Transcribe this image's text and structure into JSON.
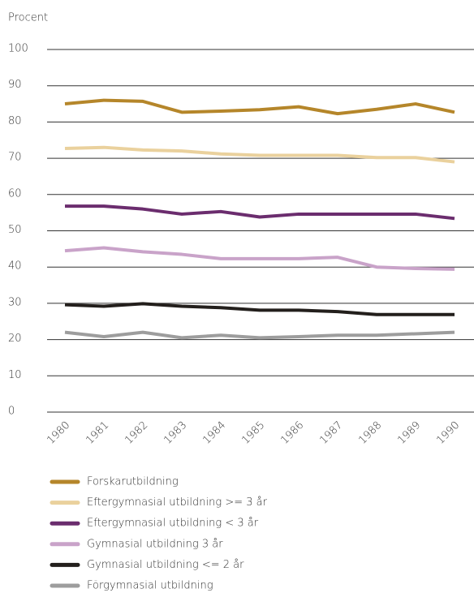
{
  "chart_data": {
    "type": "line",
    "y_label": "Procent",
    "categories": [
      "1980",
      "1981",
      "1982",
      "1983",
      "1984",
      "1985",
      "1986",
      "1987",
      "1988",
      "1989",
      "1990"
    ],
    "ylim": [
      0,
      100
    ],
    "yticks": [
      0,
      10,
      20,
      30,
      40,
      50,
      60,
      70,
      80,
      90,
      100
    ],
    "grid": true,
    "series": [
      {
        "name": "Forskarutbildning",
        "color": "#b5862a",
        "values": [
          85,
          86,
          85.7,
          82.7,
          83,
          83.4,
          84.2,
          82.3,
          83.5,
          85,
          82.7
        ]
      },
      {
        "name": "Eftergymnasial utbildning  >= 3 år",
        "color": "#ead19d",
        "values": [
          72.7,
          73,
          72.3,
          72,
          71.2,
          70.8,
          70.8,
          70.8,
          70.2,
          70.2,
          69
        ]
      },
      {
        "name": "Eftergymnasial utbildning  < 3 år",
        "color": "#6b2d6e",
        "values": [
          56.8,
          56.8,
          56,
          54.6,
          55.3,
          53.8,
          54.6,
          54.6,
          54.6,
          54.6,
          53.4
        ]
      },
      {
        "name": "Gymnasial utbildning 3 år",
        "color": "#c9a3c9",
        "values": [
          44.5,
          45.3,
          44.2,
          43.5,
          42.3,
          42.3,
          42.3,
          42.7,
          40,
          39.6,
          39.4
        ]
      },
      {
        "name": "Gymnasial utbildning <= 2 år",
        "color": "#231f1c",
        "values": [
          29.6,
          29.2,
          29.9,
          29.2,
          28.8,
          28.1,
          28.1,
          27.7,
          26.9,
          26.9,
          26.9
        ]
      },
      {
        "name": "Förgymnasial utbildning",
        "color": "#9d9d9d",
        "values": [
          22,
          20.8,
          22,
          20.5,
          21.2,
          20.5,
          20.8,
          21.2,
          21.2,
          21.6,
          22
        ]
      }
    ]
  }
}
